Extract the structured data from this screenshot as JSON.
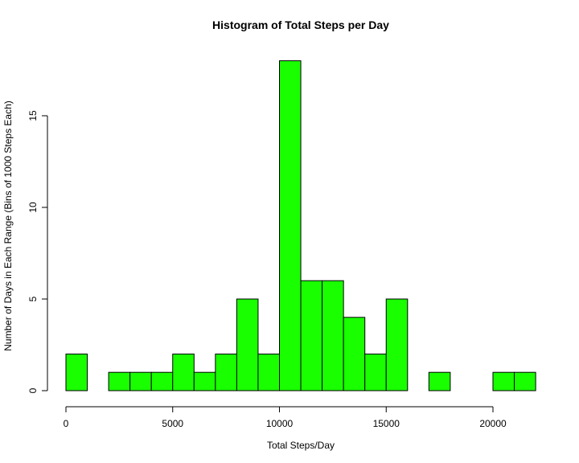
{
  "chart_data": {
    "type": "bar",
    "title": "Histogram of Total Steps per Day",
    "xlabel": "Total Steps/Day",
    "ylabel": "Number of Days in Each Range (Bins of 1000 Steps Each)",
    "bar_color": "#1aff00",
    "xlim": [
      0,
      22000
    ],
    "ylim": [
      0,
      18
    ],
    "x_ticks": [
      0,
      5000,
      10000,
      15000,
      20000
    ],
    "y_ticks": [
      0,
      5,
      10,
      15
    ],
    "bin_width": 1000,
    "bin_starts": [
      0,
      1000,
      2000,
      3000,
      4000,
      5000,
      6000,
      7000,
      8000,
      9000,
      10000,
      11000,
      12000,
      13000,
      14000,
      15000,
      16000,
      17000,
      18000,
      19000,
      20000,
      21000
    ],
    "values": [
      2,
      0,
      1,
      1,
      1,
      2,
      1,
      2,
      5,
      2,
      18,
      6,
      6,
      4,
      2,
      5,
      0,
      1,
      0,
      0,
      1,
      1
    ]
  }
}
